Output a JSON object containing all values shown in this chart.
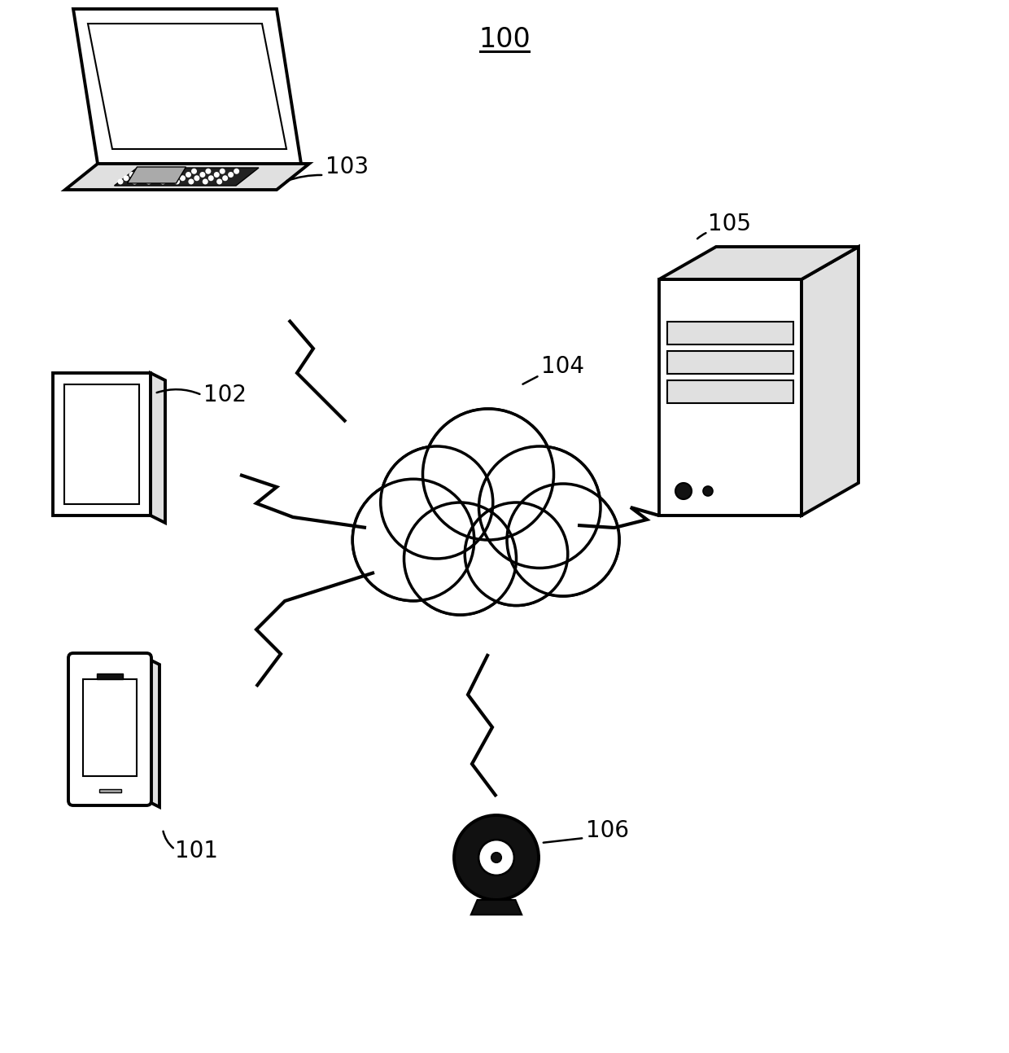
{
  "title": "100",
  "bg_color": "#ffffff",
  "outline_color": "#000000",
  "label_101": "101",
  "label_102": "102",
  "label_103": "103",
  "label_104": "104",
  "label_105": "105",
  "label_106": "106",
  "label_fontsize": 20,
  "title_fontsize": 24,
  "lw": 2.8
}
